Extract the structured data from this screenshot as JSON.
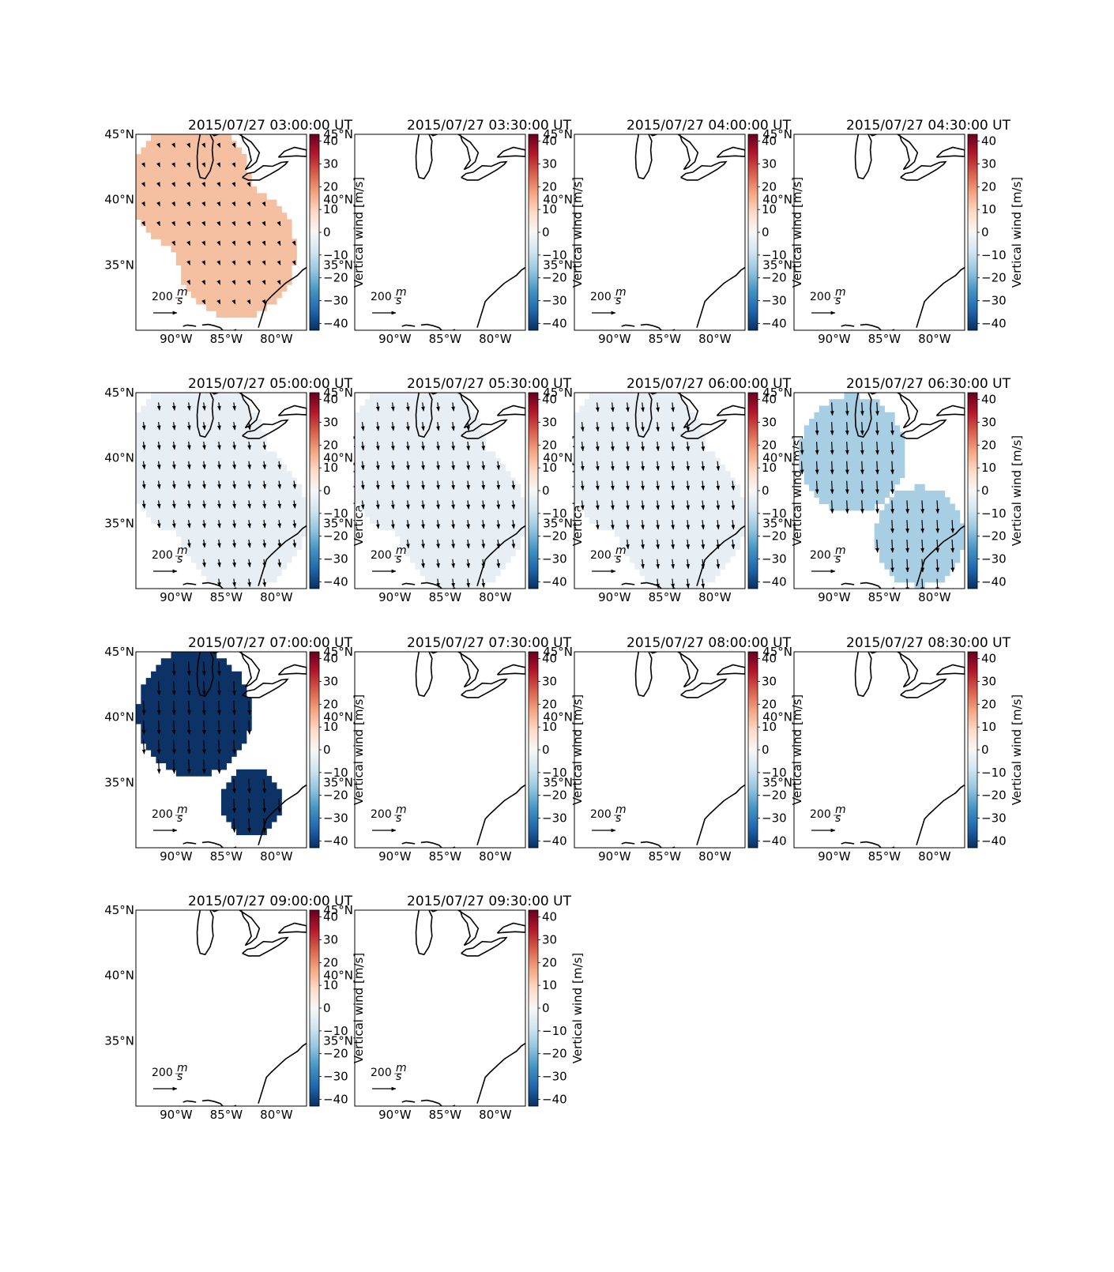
{
  "figure": {
    "panels": [
      {
        "title": "2015/07/27 03:00:00 UT",
        "fill": "#f5bfa1",
        "regions": [
          [
            -88.5,
            41.0,
            5.0
          ],
          [
            -84.0,
            36.0,
            5.0
          ]
        ],
        "vectors": {
          "dx": 0.4,
          "dy": -0.9
        }
      },
      {
        "title": "2015/07/27 03:30:00 UT",
        "fill": null,
        "regions": [],
        "vectors": null
      },
      {
        "title": "2015/07/27 04:00:00 UT",
        "fill": null,
        "regions": [],
        "vectors": null
      },
      {
        "title": "2015/07/27 04:30:00 UT",
        "fill": null,
        "regions": [],
        "vectors": null
      },
      {
        "title": "2015/07/27 05:00:00 UT",
        "fill": "#e8eff4",
        "regions": [
          [
            -88.0,
            40.0,
            6.0
          ],
          [
            -83.5,
            35.5,
            5.5
          ]
        ],
        "vectors": {
          "dx": 0.3,
          "dy": -2.2
        }
      },
      {
        "title": "2015/07/27 05:30:00 UT",
        "fill": "#e8eff4",
        "regions": [
          [
            -88.0,
            40.0,
            6.0
          ],
          [
            -83.5,
            35.5,
            5.5
          ]
        ],
        "vectors": {
          "dx": 0.3,
          "dy": -2.4
        }
      },
      {
        "title": "2015/07/27 06:00:00 UT",
        "fill": "#e8eff4",
        "regions": [
          [
            -88.0,
            40.0,
            6.0
          ],
          [
            -83.5,
            35.5,
            5.5
          ]
        ],
        "vectors": {
          "dx": 0.3,
          "dy": -2.6
        }
      },
      {
        "title": "2015/07/27 06:30:00 UT",
        "fill": "#a8cee4",
        "regions": [
          [
            -88.2,
            40.3,
            4.5
          ],
          [
            -81.5,
            34.0,
            3.8
          ]
        ],
        "vectors": {
          "dx": 0.2,
          "dy": -3.6
        }
      },
      {
        "title": "2015/07/27 07:00:00 UT",
        "fill": "#0c3266",
        "regions": [
          [
            -88.2,
            40.3,
            4.8
          ],
          [
            -82.5,
            33.5,
            2.5
          ]
        ],
        "vectors": {
          "dx": 0.2,
          "dy": -3.9
        }
      },
      {
        "title": "2015/07/27 07:30:00 UT",
        "fill": null,
        "regions": [],
        "vectors": null
      },
      {
        "title": "2015/07/27 08:00:00 UT",
        "fill": null,
        "regions": [],
        "vectors": null
      },
      {
        "title": "2015/07/27 08:30:00 UT",
        "fill": null,
        "regions": [],
        "vectors": null
      },
      {
        "title": "2015/07/27 09:00:00 UT",
        "fill": null,
        "regions": [],
        "vectors": null
      },
      {
        "title": "2015/07/27 09:30:00 UT",
        "fill": null,
        "regions": [],
        "vectors": null
      }
    ],
    "extent": {
      "lon": [
        -94,
        -77
      ],
      "lat": [
        30,
        45
      ]
    },
    "lat_ticks": [
      {
        "value": 45,
        "label": "45°N"
      },
      {
        "value": 40,
        "label": "40°N"
      },
      {
        "value": 35,
        "label": "35°N"
      }
    ],
    "lon_ticks": [
      {
        "value": -90,
        "label": "90°W"
      },
      {
        "value": -85,
        "label": "85°W"
      },
      {
        "value": -80,
        "label": "80°W"
      }
    ],
    "quiver_key": {
      "value": "200",
      "unit_num": "m",
      "unit_den": "s"
    },
    "colorbar": {
      "label": "Vertical wind [m/s]",
      "range": [
        -43,
        43
      ],
      "ticks": [
        {
          "value": 40,
          "label": "40"
        },
        {
          "value": 30,
          "label": "30"
        },
        {
          "value": 20,
          "label": "20"
        },
        {
          "value": 10,
          "label": "10"
        },
        {
          "value": 0,
          "label": "0"
        },
        {
          "value": -10,
          "label": "−10"
        },
        {
          "value": -20,
          "label": "−20"
        },
        {
          "value": -30,
          "label": "−30"
        },
        {
          "value": -40,
          "label": "−40"
        }
      ],
      "colors": [
        "#053061",
        "#2166ac",
        "#4393c3",
        "#92c5de",
        "#d1e5f0",
        "#f7f7f7",
        "#fddbc7",
        "#f4a582",
        "#d6604d",
        "#b2182b",
        "#67001f"
      ]
    }
  }
}
